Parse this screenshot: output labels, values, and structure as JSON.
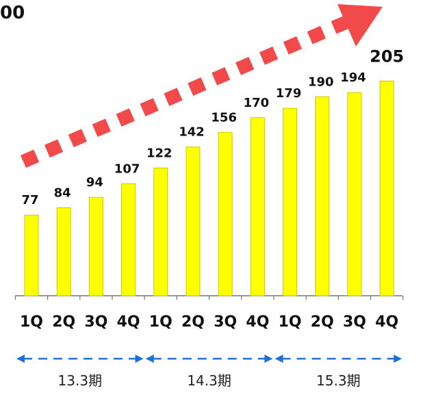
{
  "corner_text": "00",
  "chart_data": {
    "type": "bar",
    "categories": [
      "1Q",
      "2Q",
      "3Q",
      "4Q",
      "1Q",
      "2Q",
      "3Q",
      "4Q",
      "1Q",
      "2Q",
      "3Q",
      "4Q"
    ],
    "values": [
      77,
      84,
      94,
      107,
      122,
      142,
      156,
      170,
      179,
      190,
      194,
      205
    ],
    "periods": [
      {
        "label": "13.3期",
        "from": 0,
        "to": 3
      },
      {
        "label": "14.3期",
        "from": 4,
        "to": 7
      },
      {
        "label": "15.3期",
        "from": 8,
        "to": 11
      }
    ],
    "title": "",
    "xlabel": "",
    "ylabel": "",
    "ylim": [
      0,
      220
    ],
    "grid": false,
    "legend": "none",
    "colors": {
      "bar_fill": "#ffff00",
      "bar_stroke": "#c8c800",
      "arrow": "#f24a4a",
      "period_arrow": "#1f6fd6",
      "axis": "#777777"
    }
  }
}
